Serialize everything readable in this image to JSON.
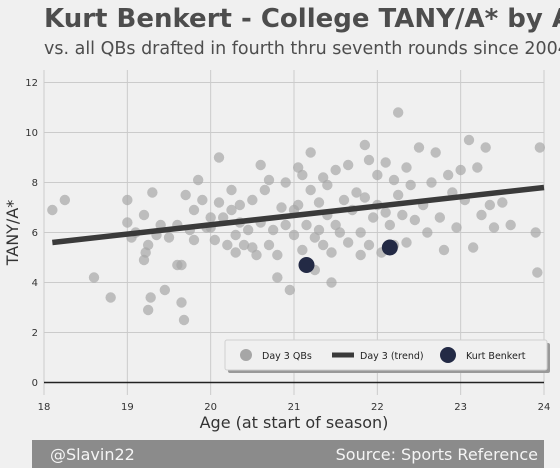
{
  "chart_data": {
    "type": "scatter",
    "title": "Kurt Benkert - College TANY/A* by Age",
    "subtitle": "vs. all QBs drafted in fourth thru seventh rounds since 2004",
    "xlabel": "Age (at start of season)",
    "ylabel": "TANY/A*",
    "xlim": [
      18,
      24
    ],
    "ylim": [
      -0.5,
      12.5
    ],
    "xticks": [
      "18",
      "19",
      "20",
      "21",
      "22",
      "23",
      "24"
    ],
    "yticks": [
      "0",
      "2",
      "4",
      "6",
      "8",
      "10",
      "12"
    ],
    "grid": true,
    "legend_position": "bottom-right",
    "series": [
      {
        "name": "Day 3 QBs",
        "kind": "scatter",
        "color": "#a6a6a6",
        "points": [
          [
            18.1,
            6.9
          ],
          [
            18.25,
            7.3
          ],
          [
            18.6,
            4.2
          ],
          [
            18.8,
            3.4
          ],
          [
            19.0,
            7.3
          ],
          [
            19.0,
            6.4
          ],
          [
            19.05,
            5.8
          ],
          [
            19.1,
            6.0
          ],
          [
            19.2,
            6.7
          ],
          [
            19.22,
            5.2
          ],
          [
            19.25,
            5.5
          ],
          [
            19.2,
            4.9
          ],
          [
            19.25,
            2.9
          ],
          [
            19.28,
            3.4
          ],
          [
            19.3,
            7.6
          ],
          [
            19.35,
            5.9
          ],
          [
            19.4,
            6.3
          ],
          [
            19.45,
            3.7
          ],
          [
            19.5,
            5.8
          ],
          [
            19.6,
            6.3
          ],
          [
            19.6,
            4.7
          ],
          [
            19.65,
            4.7
          ],
          [
            19.65,
            3.2
          ],
          [
            19.68,
            2.5
          ],
          [
            19.7,
            7.5
          ],
          [
            19.75,
            6.1
          ],
          [
            19.8,
            5.7
          ],
          [
            19.8,
            6.9
          ],
          [
            19.85,
            8.1
          ],
          [
            19.9,
            7.3
          ],
          [
            19.95,
            6.2
          ],
          [
            20.0,
            6.6
          ],
          [
            20.0,
            6.2
          ],
          [
            20.05,
            5.7
          ],
          [
            20.1,
            9.0
          ],
          [
            20.1,
            7.2
          ],
          [
            20.15,
            6.6
          ],
          [
            20.2,
            5.5
          ],
          [
            20.25,
            7.7
          ],
          [
            20.25,
            6.9
          ],
          [
            20.3,
            5.2
          ],
          [
            20.3,
            5.9
          ],
          [
            20.35,
            6.4
          ],
          [
            20.35,
            7.1
          ],
          [
            20.4,
            5.5
          ],
          [
            20.45,
            6.1
          ],
          [
            20.5,
            5.4
          ],
          [
            20.5,
            7.3
          ],
          [
            20.55,
            5.1
          ],
          [
            20.6,
            8.7
          ],
          [
            20.6,
            6.4
          ],
          [
            20.65,
            7.7
          ],
          [
            20.7,
            8.1
          ],
          [
            20.7,
            5.5
          ],
          [
            20.75,
            6.1
          ],
          [
            20.8,
            5.1
          ],
          [
            20.8,
            4.2
          ],
          [
            20.85,
            7.0
          ],
          [
            20.9,
            6.3
          ],
          [
            20.9,
            8.0
          ],
          [
            20.95,
            3.7
          ],
          [
            21.0,
            6.9
          ],
          [
            21.0,
            5.9
          ],
          [
            21.05,
            8.6
          ],
          [
            21.05,
            7.1
          ],
          [
            21.1,
            8.3
          ],
          [
            21.1,
            5.3
          ],
          [
            21.15,
            6.3
          ],
          [
            21.15,
            4.8
          ],
          [
            21.2,
            9.2
          ],
          [
            21.2,
            7.7
          ],
          [
            21.25,
            5.8
          ],
          [
            21.25,
            4.5
          ],
          [
            21.3,
            7.2
          ],
          [
            21.3,
            6.1
          ],
          [
            21.35,
            8.2
          ],
          [
            21.35,
            5.5
          ],
          [
            21.4,
            6.7
          ],
          [
            21.4,
            7.9
          ],
          [
            21.45,
            5.2
          ],
          [
            21.45,
            4.0
          ],
          [
            21.5,
            6.3
          ],
          [
            21.5,
            8.5
          ],
          [
            21.55,
            6.0
          ],
          [
            21.6,
            7.3
          ],
          [
            21.65,
            8.7
          ],
          [
            21.65,
            5.6
          ],
          [
            21.7,
            6.9
          ],
          [
            21.75,
            7.6
          ],
          [
            21.8,
            6.0
          ],
          [
            21.8,
            5.1
          ],
          [
            21.85,
            9.5
          ],
          [
            21.85,
            7.4
          ],
          [
            21.9,
            8.9
          ],
          [
            21.9,
            5.5
          ],
          [
            21.95,
            6.6
          ],
          [
            22.0,
            7.1
          ],
          [
            22.0,
            8.3
          ],
          [
            22.05,
            5.2
          ],
          [
            22.1,
            6.8
          ],
          [
            22.1,
            8.8
          ],
          [
            22.15,
            6.3
          ],
          [
            22.2,
            8.1
          ],
          [
            22.2,
            5.5
          ],
          [
            22.25,
            10.8
          ],
          [
            22.25,
            7.5
          ],
          [
            22.3,
            6.7
          ],
          [
            22.35,
            8.6
          ],
          [
            22.35,
            5.6
          ],
          [
            22.4,
            7.9
          ],
          [
            22.45,
            6.5
          ],
          [
            22.5,
            9.4
          ],
          [
            22.55,
            7.1
          ],
          [
            22.6,
            6.0
          ],
          [
            22.65,
            8.0
          ],
          [
            22.7,
            9.2
          ],
          [
            22.75,
            6.6
          ],
          [
            22.8,
            5.3
          ],
          [
            22.85,
            8.3
          ],
          [
            22.9,
            7.6
          ],
          [
            22.95,
            6.2
          ],
          [
            23.0,
            8.5
          ],
          [
            23.05,
            7.3
          ],
          [
            23.1,
            9.7
          ],
          [
            23.15,
            5.4
          ],
          [
            23.2,
            8.6
          ],
          [
            23.25,
            6.7
          ],
          [
            23.3,
            9.4
          ],
          [
            23.35,
            7.1
          ],
          [
            23.4,
            6.2
          ],
          [
            23.5,
            7.2
          ],
          [
            23.6,
            6.3
          ],
          [
            23.9,
            6.0
          ],
          [
            23.95,
            9.4
          ],
          [
            23.92,
            4.4
          ]
        ]
      },
      {
        "name": "Day 3 (trend)",
        "kind": "line",
        "color": "#3a3a3a",
        "points": [
          [
            18.1,
            5.6
          ],
          [
            24.0,
            7.8
          ]
        ]
      },
      {
        "name": "Kurt Benkert",
        "kind": "scatter",
        "color": "#232a45",
        "points": [
          [
            21.15,
            4.7
          ],
          [
            22.15,
            5.4
          ]
        ]
      }
    ]
  },
  "footer": {
    "left": "@Slavin22",
    "right": "Source: Sports Reference"
  }
}
